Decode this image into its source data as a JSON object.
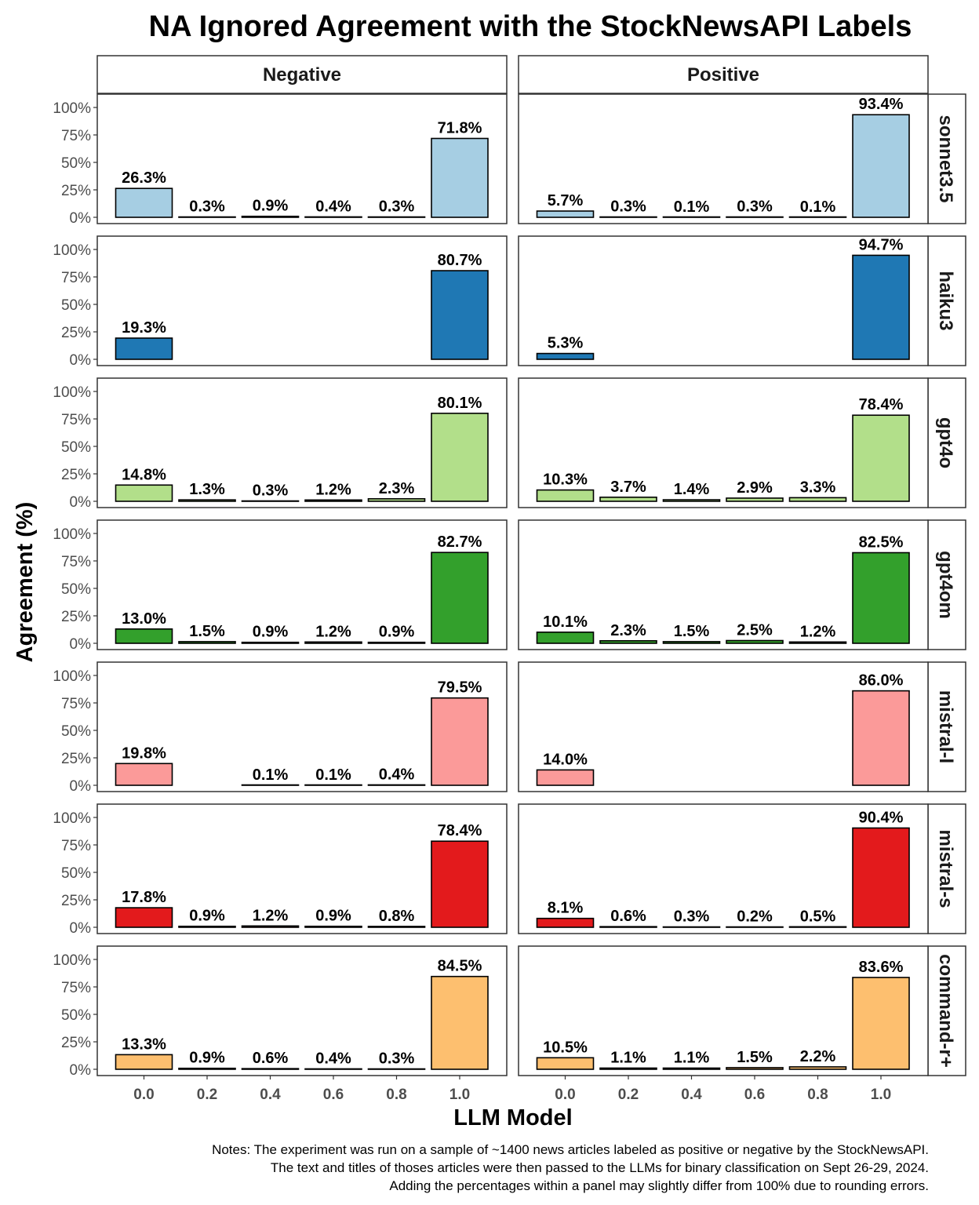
{
  "chart_data": {
    "type": "bar",
    "title": "NA Ignored Agreement with the StockNewsAPI Labels",
    "xlabel": "LLM Model",
    "ylabel": "Agreement (%)",
    "ylim": [
      0,
      1.1
    ],
    "y_ticks": [
      "0%",
      "25%",
      "50%",
      "75%",
      "100%"
    ],
    "y_tick_values": [
      0,
      0.25,
      0.5,
      0.75,
      1.0
    ],
    "categories": [
      "0.0",
      "0.2",
      "0.4",
      "0.6",
      "0.8",
      "1.0"
    ],
    "columns": [
      "Negative",
      "Positive"
    ],
    "grid": false,
    "legend": "none",
    "rows": [
      {
        "name": "sonnet3.5",
        "color": "#a6cee3",
        "values": {
          "Negative": [
            0.263,
            0.003,
            0.009,
            0.004,
            0.003,
            0.718
          ],
          "Positive": [
            0.057,
            0.003,
            0.001,
            0.003,
            0.001,
            0.934
          ]
        },
        "labels": {
          "Negative": [
            "26.3%",
            "0.3%",
            "0.9%",
            "0.4%",
            "0.3%",
            "71.8%"
          ],
          "Positive": [
            "5.7%",
            "0.3%",
            "0.1%",
            "0.3%",
            "0.1%",
            "93.4%"
          ]
        }
      },
      {
        "name": "haiku3",
        "color": "#1f78b4",
        "values": {
          "Negative": [
            0.193,
            null,
            null,
            null,
            null,
            0.807
          ],
          "Positive": [
            0.053,
            null,
            null,
            null,
            null,
            0.947
          ]
        },
        "labels": {
          "Negative": [
            "19.3%",
            "",
            "",
            "",
            "",
            "80.7%"
          ],
          "Positive": [
            "5.3%",
            "",
            "",
            "",
            "",
            "94.7%"
          ]
        }
      },
      {
        "name": "gpt4o",
        "color": "#b2df8a",
        "values": {
          "Negative": [
            0.148,
            0.013,
            0.003,
            0.012,
            0.023,
            0.801
          ],
          "Positive": [
            0.103,
            0.037,
            0.014,
            0.029,
            0.033,
            0.784
          ]
        },
        "labels": {
          "Negative": [
            "14.8%",
            "1.3%",
            "0.3%",
            "1.2%",
            "2.3%",
            "80.1%"
          ],
          "Positive": [
            "10.3%",
            "3.7%",
            "1.4%",
            "2.9%",
            "3.3%",
            "78.4%"
          ]
        }
      },
      {
        "name": "gpt4om",
        "color": "#33a02c",
        "values": {
          "Negative": [
            0.13,
            0.015,
            0.009,
            0.012,
            0.009,
            0.827
          ],
          "Positive": [
            0.101,
            0.023,
            0.015,
            0.025,
            0.012,
            0.825
          ]
        },
        "labels": {
          "Negative": [
            "13.0%",
            "1.5%",
            "0.9%",
            "1.2%",
            "0.9%",
            "82.7%"
          ],
          "Positive": [
            "10.1%",
            "2.3%",
            "1.5%",
            "2.5%",
            "1.2%",
            "82.5%"
          ]
        }
      },
      {
        "name": "mistral-l",
        "color": "#fb9a99",
        "values": {
          "Negative": [
            0.198,
            null,
            0.001,
            0.001,
            0.004,
            0.795
          ],
          "Positive": [
            0.14,
            null,
            null,
            null,
            null,
            0.86
          ]
        },
        "labels": {
          "Negative": [
            "19.8%",
            "",
            "0.1%",
            "0.1%",
            "0.4%",
            "79.5%"
          ],
          "Positive": [
            "14.0%",
            "",
            "",
            "",
            "",
            "86.0%"
          ]
        }
      },
      {
        "name": "mistral-s",
        "color": "#e31a1c",
        "values": {
          "Negative": [
            0.178,
            0.009,
            0.012,
            0.009,
            0.008,
            0.784
          ],
          "Positive": [
            0.081,
            0.006,
            0.003,
            0.002,
            0.005,
            0.904
          ]
        },
        "labels": {
          "Negative": [
            "17.8%",
            "0.9%",
            "1.2%",
            "0.9%",
            "0.8%",
            "78.4%"
          ],
          "Positive": [
            "8.1%",
            "0.6%",
            "0.3%",
            "0.2%",
            "0.5%",
            "90.4%"
          ]
        }
      },
      {
        "name": "command-r+",
        "color": "#fdbf6f",
        "values": {
          "Negative": [
            0.133,
            0.009,
            0.006,
            0.004,
            0.003,
            0.845
          ],
          "Positive": [
            0.105,
            0.011,
            0.011,
            0.015,
            0.022,
            0.836
          ]
        },
        "labels": {
          "Negative": [
            "13.3%",
            "0.9%",
            "0.6%",
            "0.4%",
            "0.3%",
            "84.5%"
          ],
          "Positive": [
            "10.5%",
            "1.1%",
            "1.1%",
            "1.5%",
            "2.2%",
            "83.6%"
          ]
        }
      }
    ],
    "notes": [
      "Notes: The experiment was run on a sample of ~1400 news articles labeled as positive or negative by the StockNewsAPI.",
      "The text and titles of thoses articles were then passed to the LLMs for binary classification on Sept 26-29, 2024.",
      "Adding the percentages within a panel may slightly differ from 100% due to rounding errors."
    ]
  }
}
